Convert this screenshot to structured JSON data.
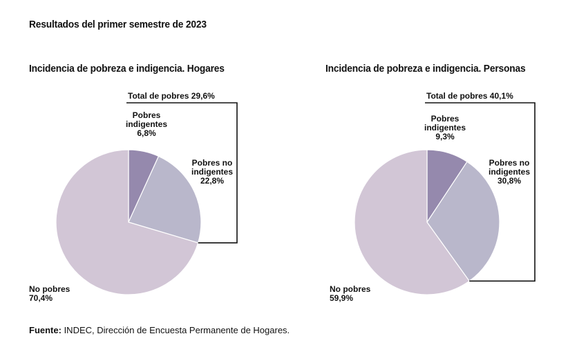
{
  "header": {
    "title": "Resultados del primer semestre de 2023"
  },
  "colors": {
    "indigentes": "#9589ad",
    "pobres_no_indigentes": "#b9b7cb",
    "no_pobres": "#d2c6d6",
    "bracket": "#111111"
  },
  "chart_data": [
    {
      "type": "pie",
      "title": "Incidencia de pobreza e indigencia. Hogares",
      "total_label": "Total de pobres 29,6%",
      "slices": [
        {
          "label": [
            "Pobres",
            "indigentes"
          ],
          "value": 6.8,
          "value_text": "6,8%",
          "color_key": "indigentes"
        },
        {
          "label": [
            "Pobres no",
            "indigentes"
          ],
          "value": 22.8,
          "value_text": "22,8%",
          "color_key": "pobres_no_indigentes"
        },
        {
          "label": [
            "No pobres"
          ],
          "value": 70.4,
          "value_text": "70,4%",
          "color_key": "no_pobres"
        }
      ]
    },
    {
      "type": "pie",
      "title": "Incidencia de pobreza e indigencia. Personas",
      "total_label": "Total de pobres 40,1%",
      "slices": [
        {
          "label": [
            "Pobres",
            "indigentes"
          ],
          "value": 9.3,
          "value_text": "9,3%",
          "color_key": "indigentes"
        },
        {
          "label": [
            "Pobres no",
            "indigentes"
          ],
          "value": 30.8,
          "value_text": "30,8%",
          "color_key": "pobres_no_indigentes"
        },
        {
          "label": [
            "No pobres"
          ],
          "value": 59.9,
          "value_text": "59,9%",
          "color_key": "no_pobres"
        }
      ]
    }
  ],
  "source": {
    "prefix": "Fuente:",
    "text": " INDEC, Dirección de Encuesta Permanente de Hogares."
  }
}
